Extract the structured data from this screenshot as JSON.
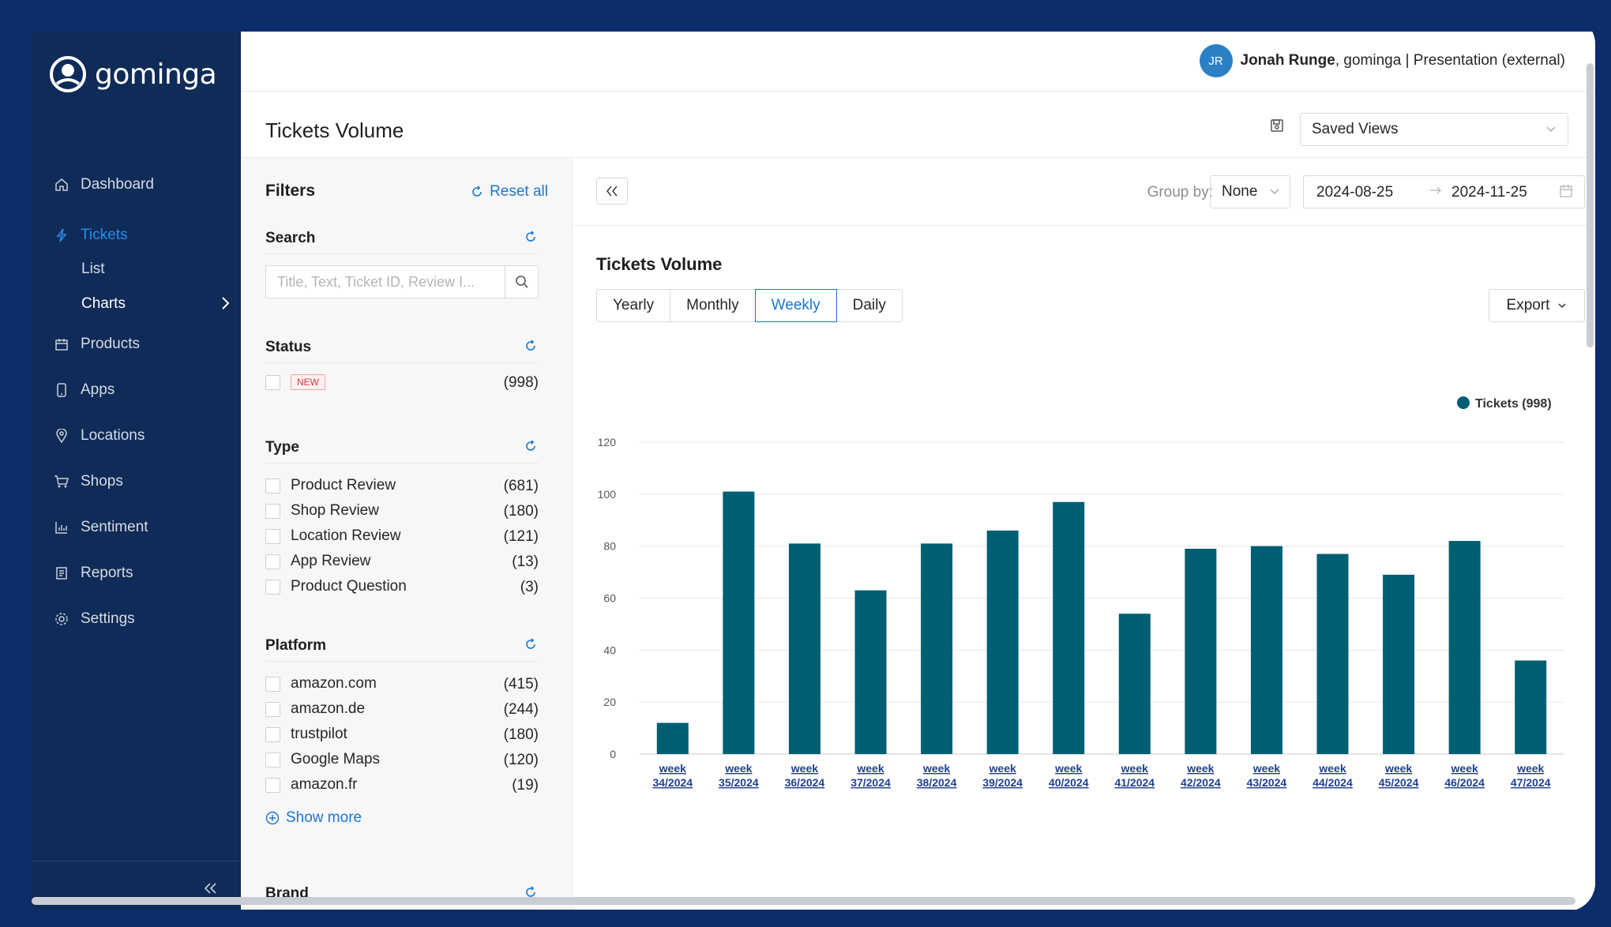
{
  "brand": {
    "name": "gominga"
  },
  "sidebar": {
    "items": [
      {
        "label": "Dashboard",
        "icon": "home-icon"
      },
      {
        "label": "Tickets",
        "icon": "bolt-icon",
        "active": true
      },
      {
        "label": "Products",
        "icon": "box-icon"
      },
      {
        "label": "Apps",
        "icon": "phone-icon"
      },
      {
        "label": "Locations",
        "icon": "pin-icon"
      },
      {
        "label": "Shops",
        "icon": "cart-icon"
      },
      {
        "label": "Sentiment",
        "icon": "bar-chart-icon"
      },
      {
        "label": "Reports",
        "icon": "report-icon"
      },
      {
        "label": "Settings",
        "icon": "gear-icon"
      }
    ],
    "sub_items": [
      {
        "label": "List"
      },
      {
        "label": "Charts"
      }
    ]
  },
  "user": {
    "initials": "JR",
    "name": "Jonah Runge",
    "rest": ", gominga | Presentation (external)"
  },
  "page": {
    "title": "Tickets Volume",
    "saved_views": "Saved Views"
  },
  "filters": {
    "title": "Filters",
    "reset_all": "Reset all",
    "search": {
      "title": "Search",
      "placeholder": "Title, Text, Ticket ID, Review I..."
    },
    "status": {
      "title": "Status",
      "options": [
        {
          "label": "NEW",
          "count": "(998)"
        }
      ]
    },
    "type": {
      "title": "Type",
      "options": [
        {
          "label": "Product Review",
          "count": "(681)"
        },
        {
          "label": "Shop Review",
          "count": "(180)"
        },
        {
          "label": "Location Review",
          "count": "(121)"
        },
        {
          "label": "App Review",
          "count": "(13)"
        },
        {
          "label": "Product Question",
          "count": "(3)"
        }
      ]
    },
    "platform": {
      "title": "Platform",
      "options": [
        {
          "label": "amazon.com",
          "count": "(415)"
        },
        {
          "label": "amazon.de",
          "count": "(244)"
        },
        {
          "label": "trustpilot",
          "count": "(180)"
        },
        {
          "label": "Google Maps",
          "count": "(120)"
        },
        {
          "label": "amazon.fr",
          "count": "(19)"
        }
      ],
      "show_more": "Show more"
    },
    "brand": {
      "title": "Brand"
    }
  },
  "toolbar": {
    "group_by_label": "Group by:",
    "group_by_value": "None",
    "date_from": "2024-08-25",
    "date_to": "2024-11-25"
  },
  "chart_panel": {
    "title": "Tickets Volume",
    "periods": [
      "Yearly",
      "Monthly",
      "Weekly",
      "Daily"
    ],
    "active_period": "Weekly",
    "export": "Export"
  },
  "chart_data": {
    "type": "bar",
    "title": "Tickets Volume",
    "categories": [
      [
        "week",
        "34/2024"
      ],
      [
        "week",
        "35/2024"
      ],
      [
        "week",
        "36/2024"
      ],
      [
        "week",
        "37/2024"
      ],
      [
        "week",
        "38/2024"
      ],
      [
        "week",
        "39/2024"
      ],
      [
        "week",
        "40/2024"
      ],
      [
        "week",
        "41/2024"
      ],
      [
        "week",
        "42/2024"
      ],
      [
        "week",
        "43/2024"
      ],
      [
        "week",
        "44/2024"
      ],
      [
        "week",
        "45/2024"
      ],
      [
        "week",
        "46/2024"
      ],
      [
        "week",
        "47/2024"
      ]
    ],
    "series": [
      {
        "name": "Tickets (998)",
        "color": "#005e73",
        "values": [
          12,
          101,
          81,
          63,
          81,
          86,
          97,
          54,
          79,
          80,
          77,
          69,
          82,
          36
        ]
      }
    ],
    "ylim": [
      0,
      120
    ],
    "yticks": [
      0,
      20,
      40,
      60,
      80,
      100,
      120
    ],
    "grid": true,
    "legend_position": "top-right"
  }
}
